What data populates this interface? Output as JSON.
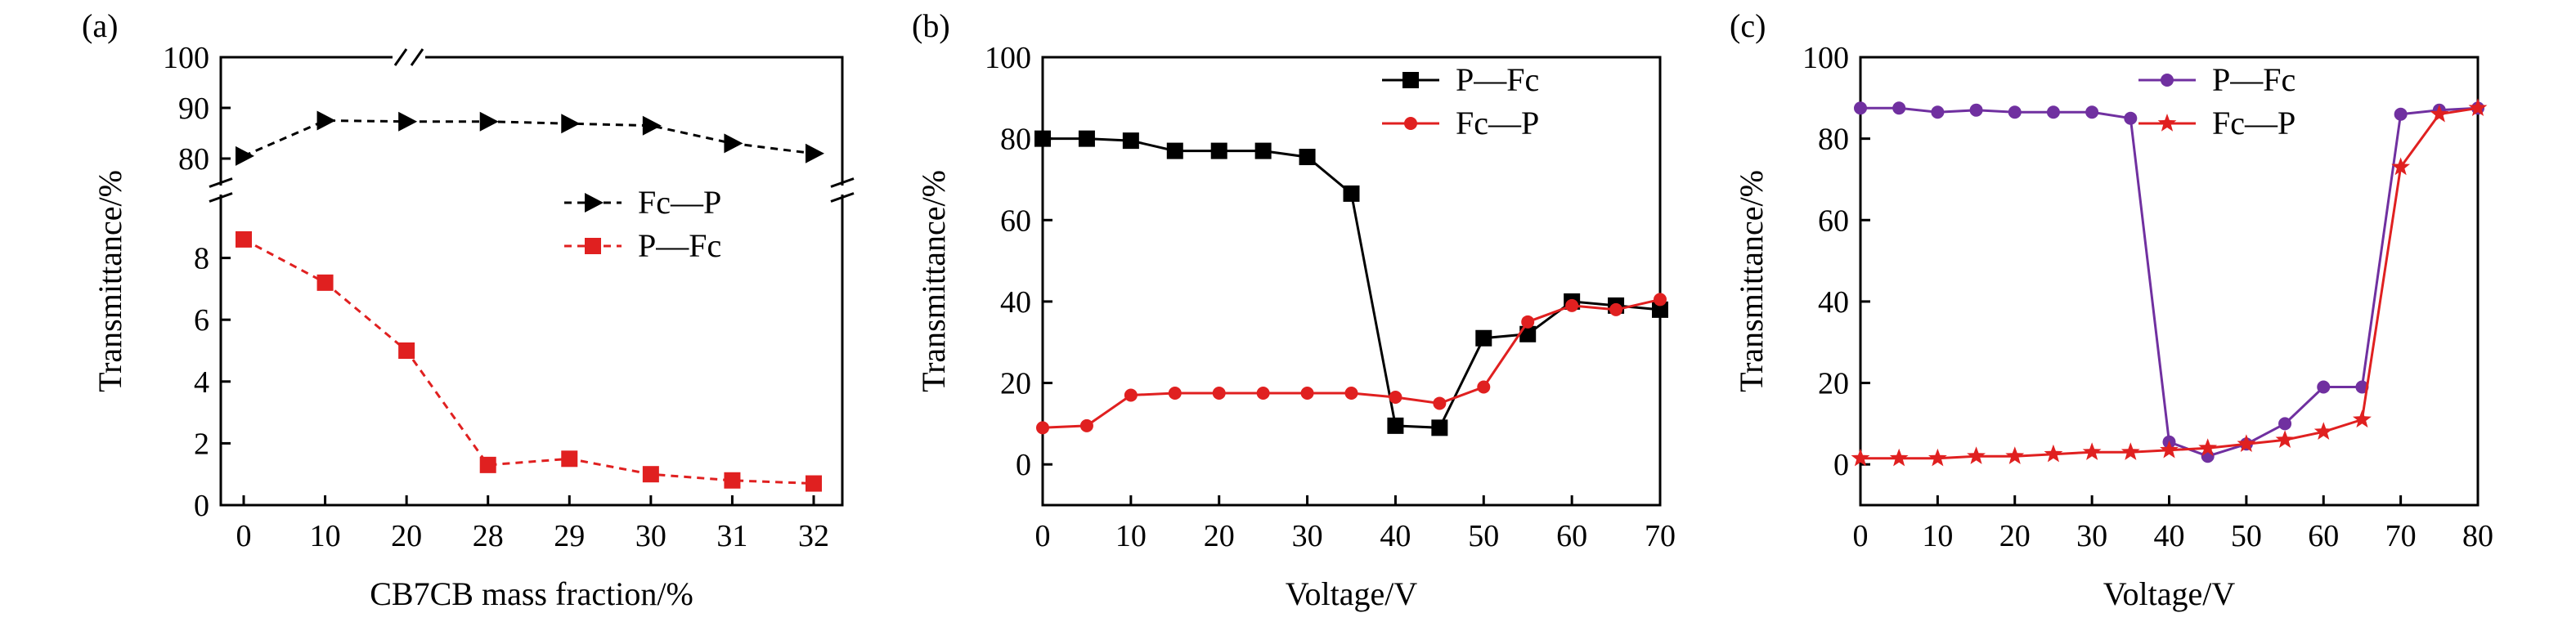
{
  "chart_data": [
    {
      "panel_label": "(a)",
      "type": "line",
      "categories": [
        "0",
        "10",
        "20",
        "28",
        "29",
        "30",
        "31",
        "32"
      ],
      "xlabel": "CB7CB mass fraction/%",
      "ylabel": "Transmittance/%",
      "y_axis": "broken",
      "y_upper": {
        "ylim": [
          75,
          100
        ],
        "ticks": [
          80,
          90,
          100
        ]
      },
      "y_lower": {
        "ylim": [
          0,
          10
        ],
        "ticks": [
          0,
          2,
          4,
          6,
          8
        ]
      },
      "grid": false,
      "legend_position": "center-right",
      "series": [
        {
          "name": "Fc—P",
          "color": "#000000",
          "marker": "triangle-right",
          "dashed": true,
          "segment": "upper",
          "values": [
            80.5,
            87.5,
            87.3,
            87.3,
            86.9,
            86.5,
            83.0,
            81.0
          ]
        },
        {
          "name": "P—Fc",
          "color": "#e02020",
          "marker": "square",
          "dashed": true,
          "segment": "lower",
          "values": [
            8.6,
            7.2,
            5.0,
            1.3,
            1.5,
            1.0,
            0.8,
            0.7
          ]
        }
      ]
    },
    {
      "panel_label": "(b)",
      "type": "line",
      "xlabel": "Voltage/V",
      "ylabel": "Transmittance/%",
      "xlim": [
        0,
        70
      ],
      "ylim": [
        -10,
        100
      ],
      "xticks": [
        0,
        10,
        20,
        30,
        40,
        50,
        60,
        70
      ],
      "yticks": [
        0,
        20,
        40,
        60,
        80,
        100
      ],
      "grid": false,
      "legend_position": "top-right",
      "series": [
        {
          "name": "P—Fc",
          "color": "#000000",
          "marker": "square",
          "x": [
            0,
            5,
            10,
            15,
            20,
            25,
            30,
            35,
            40,
            45,
            50,
            55,
            60,
            65,
            70
          ],
          "y": [
            80,
            80,
            79.5,
            77,
            77,
            77,
            75.5,
            66.5,
            9.5,
            9,
            31,
            32,
            40,
            39,
            38
          ]
        },
        {
          "name": "Fc—P",
          "color": "#e02020",
          "marker": "circle",
          "x": [
            0,
            5,
            10,
            15,
            20,
            25,
            30,
            35,
            40,
            45,
            50,
            55,
            60,
            65,
            70
          ],
          "y": [
            9,
            9.5,
            17,
            17.5,
            17.5,
            17.5,
            17.5,
            17.5,
            16.5,
            15,
            19,
            35,
            39,
            38,
            40.5
          ]
        }
      ]
    },
    {
      "panel_label": "(c)",
      "type": "line",
      "xlabel": "Voltage/V",
      "ylabel": "Transmittance/%",
      "xlim": [
        0,
        80
      ],
      "ylim": [
        -10,
        100
      ],
      "xticks": [
        0,
        10,
        20,
        30,
        40,
        50,
        60,
        70,
        80
      ],
      "yticks": [
        0,
        20,
        40,
        60,
        80,
        100
      ],
      "grid": false,
      "legend_position": "top-right",
      "series": [
        {
          "name": "P—Fc",
          "color": "#7030a0",
          "marker": "circle",
          "x": [
            0,
            5,
            10,
            15,
            20,
            25,
            30,
            35,
            40,
            45,
            50,
            55,
            60,
            65,
            70,
            75,
            80
          ],
          "y": [
            87.5,
            87.5,
            86.5,
            87,
            86.5,
            86.5,
            86.5,
            85,
            5.5,
            2,
            5,
            10,
            19,
            19,
            86,
            87,
            87.5
          ]
        },
        {
          "name": "Fc—P",
          "color": "#e02020",
          "marker": "star",
          "x": [
            0,
            5,
            10,
            15,
            20,
            25,
            30,
            35,
            40,
            45,
            50,
            55,
            60,
            65,
            70,
            75,
            80
          ],
          "y": [
            1.5,
            1.5,
            1.5,
            2,
            2,
            2.5,
            3,
            3,
            3.5,
            4,
            5,
            6,
            8,
            11,
            73,
            86,
            87.5
          ]
        }
      ]
    }
  ]
}
